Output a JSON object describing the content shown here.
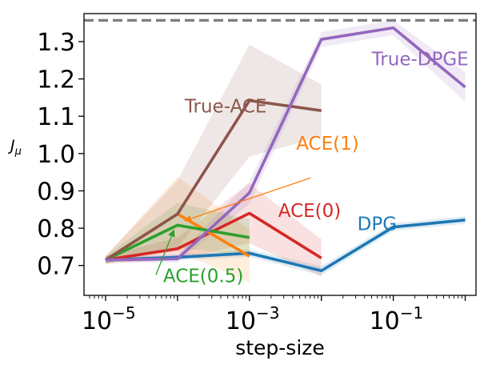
{
  "chart_data": {
    "type": "line",
    "title": "",
    "xlabel": "step-size",
    "ylabel": "J",
    "ylabel_subscript": "μ",
    "xscale": "log",
    "xlim_exp": [
      -5.3,
      0.15
    ],
    "ylim": [
      0.62,
      1.375
    ],
    "xticks": [
      {
        "exp": -5,
        "base": "10",
        "sup": "−5"
      },
      {
        "exp": -3,
        "base": "10",
        "sup": "−3"
      },
      {
        "exp": -1,
        "base": "10",
        "sup": "−1"
      }
    ],
    "yticks": [
      "0.7",
      "0.8",
      "0.9",
      "1.0",
      "1.1",
      "1.2",
      "1.3"
    ],
    "reference_line": {
      "y": 1.357,
      "color": "#7f7f7f",
      "style": "dashed"
    },
    "series": [
      {
        "name": "DPG",
        "color": "#1f77b4",
        "x_exp": [
          -5,
          -4,
          -3,
          -2,
          -1,
          0
        ],
        "y": [
          0.715,
          0.722,
          0.733,
          0.686,
          0.803,
          0.822
        ],
        "band": [
          0.006,
          0.008,
          0.01,
          0.012,
          0.01,
          0.01
        ],
        "label_pos": {
          "x_exp": -1.5,
          "y": 0.795
        }
      },
      {
        "name": "ACE(0)",
        "color": "#d62728",
        "x_exp": [
          -5,
          -4,
          -3,
          -2
        ],
        "y": [
          0.715,
          0.745,
          0.84,
          0.72
        ],
        "band": [
          0.01,
          0.03,
          0.08,
          0.05
        ],
        "label_pos": {
          "x_exp": -2.6,
          "y": 0.83
        }
      },
      {
        "name": "ACE(1)",
        "color": "#ff7f0e",
        "x_exp": [
          -5,
          -4,
          -3
        ],
        "y": [
          0.715,
          0.838,
          0.725
        ],
        "band": [
          0.01,
          0.1,
          0.07
        ],
        "label_pos": {
          "x_exp": -2.35,
          "y": 1.01
        }
      },
      {
        "name": "ACE(0.5)",
        "color": "#2ca02c",
        "x_exp": [
          -5,
          -4,
          -3
        ],
        "y": [
          0.715,
          0.808,
          0.775
        ],
        "band": [
          0.01,
          0.06,
          0.05
        ],
        "label_pos": {
          "x_exp": -4.2,
          "y": 0.655
        }
      },
      {
        "name": "True-ACE",
        "color": "#8c564b",
        "x_exp": [
          -5,
          -4,
          -3,
          -2
        ],
        "y": [
          0.715,
          0.838,
          1.142,
          1.115
        ],
        "band": [
          0.01,
          0.09,
          0.15,
          0.07
        ],
        "label_pos": {
          "x_exp": -3.9,
          "y": 1.11
        }
      },
      {
        "name": "True-DPGE",
        "color": "#9467bd",
        "x_exp": [
          -5,
          -4,
          -3,
          -2,
          -1,
          0
        ],
        "y": [
          0.715,
          0.718,
          0.895,
          1.306,
          1.337,
          1.178
        ],
        "band": [
          0.006,
          0.01,
          0.03,
          0.02,
          0.02,
          0.04
        ],
        "label_pos": {
          "x_exp": -1.3,
          "y": 1.237
        }
      }
    ],
    "annotations": [
      {
        "series": "ACE(1)",
        "from": {
          "x_exp": -2.15,
          "y": 0.935
        },
        "to": {
          "x_exp": -3.9,
          "y": 0.82
        }
      },
      {
        "series": "ACE(0.5)",
        "from": {
          "x_exp": -4.3,
          "y": 0.675
        },
        "to": {
          "x_exp": -4.05,
          "y": 0.795
        }
      }
    ]
  }
}
